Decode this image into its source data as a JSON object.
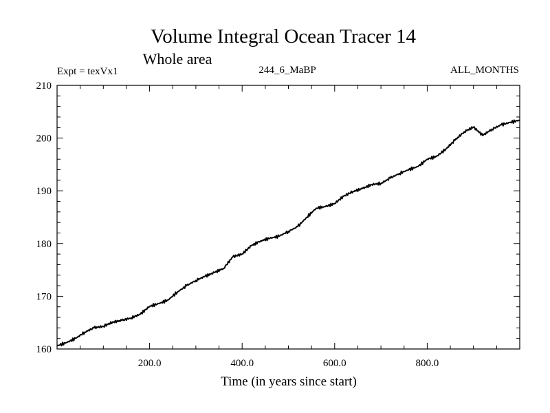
{
  "chart_data": {
    "type": "line",
    "title": "Volume Integral Ocean Tracer 14",
    "subtitle": "Whole area",
    "annotations": {
      "left": "Expt = texVx1",
      "center": "244_6_MaBP",
      "right": "ALL_MONTHS"
    },
    "xlabel": "Time (in years since start)",
    "ylabel": "",
    "xlim": [
      0,
      1000
    ],
    "ylim": [
      160,
      210
    ],
    "x_ticks": [
      200,
      400,
      600,
      800
    ],
    "x_tick_labels": [
      "200.0",
      "400.0",
      "600.0",
      "800.0"
    ],
    "y_ticks": [
      160,
      170,
      180,
      190,
      200,
      210
    ],
    "y_tick_labels": [
      "160",
      "170",
      "180",
      "190",
      "200",
      "210"
    ],
    "grid": false,
    "series": [
      {
        "name": "Volume Integral Ocean Tracer 14",
        "color": "#000000",
        "x": [
          0,
          20,
          40,
          60,
          80,
          100,
          120,
          140,
          160,
          180,
          200,
          220,
          240,
          260,
          280,
          300,
          320,
          340,
          360,
          380,
          400,
          420,
          440,
          460,
          480,
          500,
          520,
          540,
          560,
          580,
          600,
          620,
          640,
          660,
          680,
          700,
          720,
          740,
          760,
          780,
          800,
          820,
          840,
          860,
          880,
          900,
          920,
          940,
          960,
          980,
          1000
        ],
        "y": [
          160.6,
          161.2,
          162.0,
          163.2,
          164.0,
          164.3,
          165.1,
          165.4,
          165.9,
          166.6,
          168.1,
          168.6,
          169.3,
          170.8,
          172.0,
          173.0,
          173.8,
          174.5,
          175.3,
          177.5,
          178.0,
          179.6,
          180.5,
          181.0,
          181.4,
          182.3,
          183.2,
          185.0,
          186.7,
          187.0,
          187.6,
          189.0,
          189.9,
          190.4,
          191.2,
          191.4,
          192.4,
          193.3,
          194.0,
          194.6,
          196.0,
          196.5,
          197.9,
          199.6,
          201.2,
          202.1,
          200.5,
          201.7,
          202.5,
          203.0,
          203.4
        ]
      }
    ]
  }
}
